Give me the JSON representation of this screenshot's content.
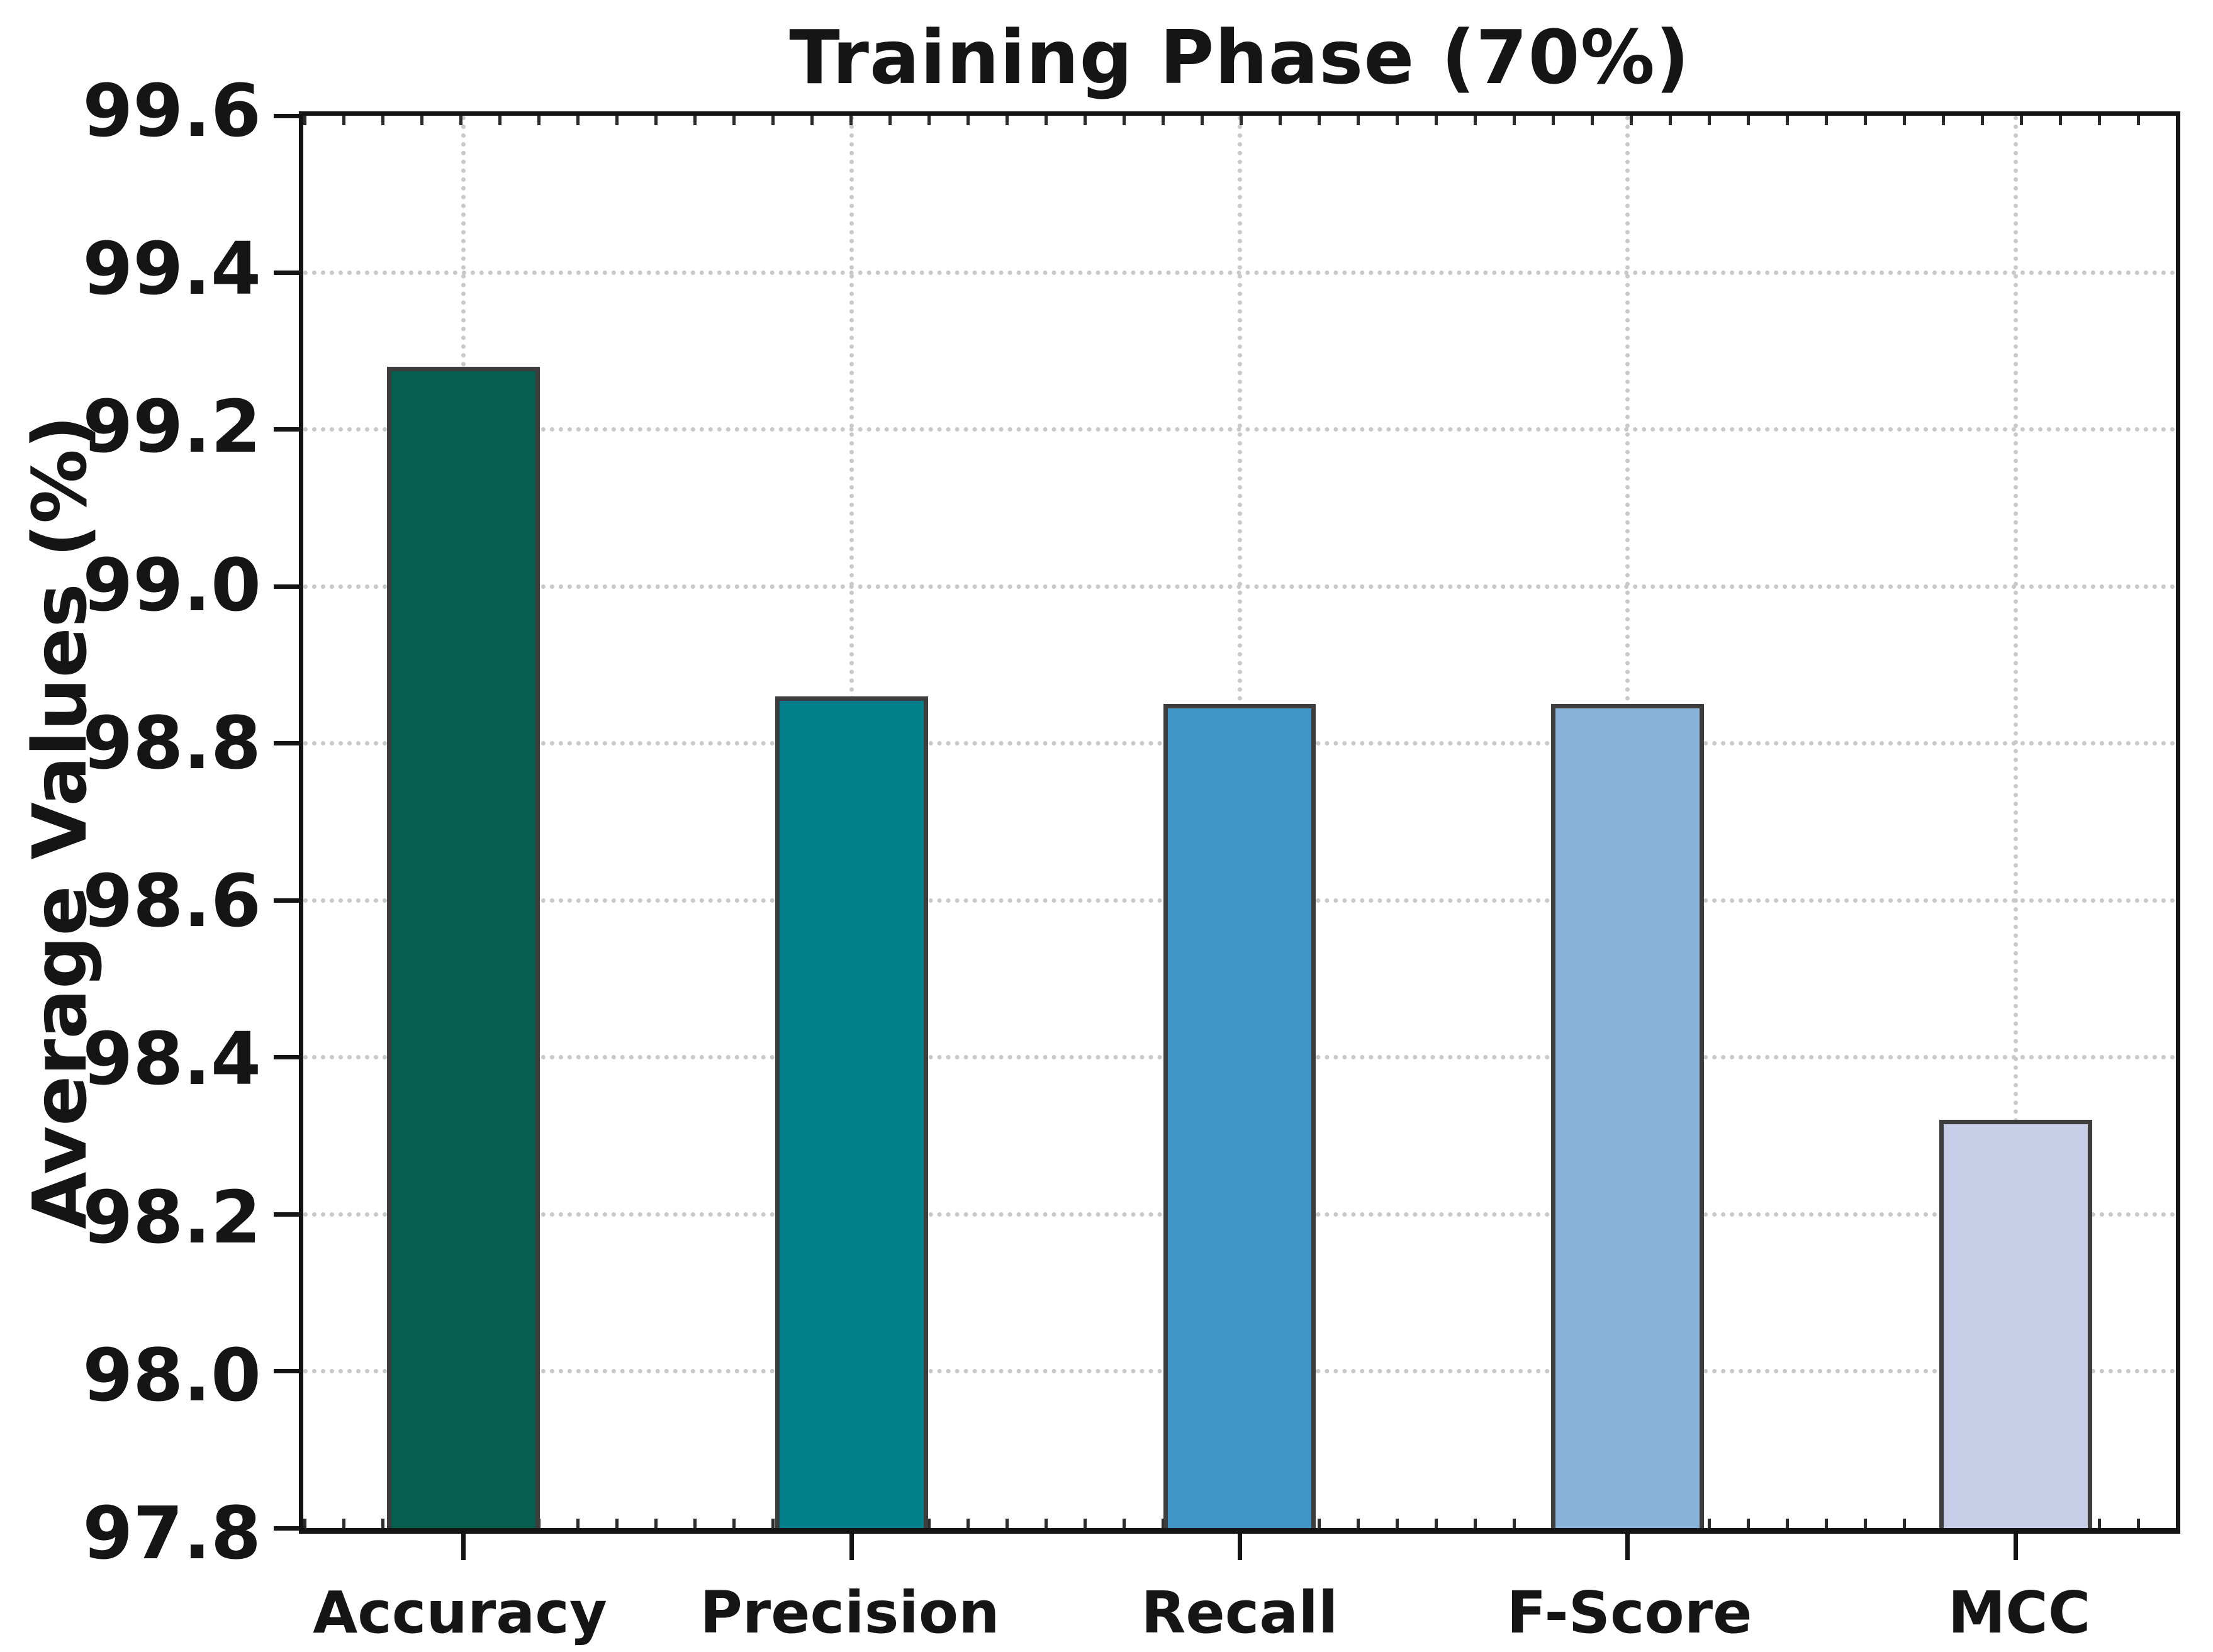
{
  "figure": {
    "title": "Training Phase (70%)",
    "ylabel": "Average Values (%)"
  },
  "chart_data": {
    "type": "bar",
    "title": "Training Phase (70%)",
    "xlabel": "",
    "ylabel": "Average Values (%)",
    "categories": [
      "Accuracy",
      "Precision",
      "Recall",
      "F-Score",
      "MCC"
    ],
    "values": [
      99.28,
      98.86,
      98.85,
      98.85,
      98.32
    ],
    "bar_colors": [
      "#045f4e",
      "#04808c",
      "#4295c7",
      "#89b2d8",
      "#c8cde7"
    ],
    "bar_edge_color": "#3d3d3d",
    "ylim": [
      97.8,
      99.6
    ],
    "ytick_step": 0.2,
    "ytick_labels": [
      "99.6",
      "99.4",
      "99.2",
      "99.0",
      "98.8",
      "98.6",
      "98.4",
      "98.2",
      "98.0",
      "97.8"
    ],
    "grid": {
      "style": "dotted",
      "color": "#c9c9c9",
      "horizontal": true,
      "vertical": true
    },
    "legend_position": "none",
    "background": "#ffffff",
    "text_color": "#151515"
  }
}
